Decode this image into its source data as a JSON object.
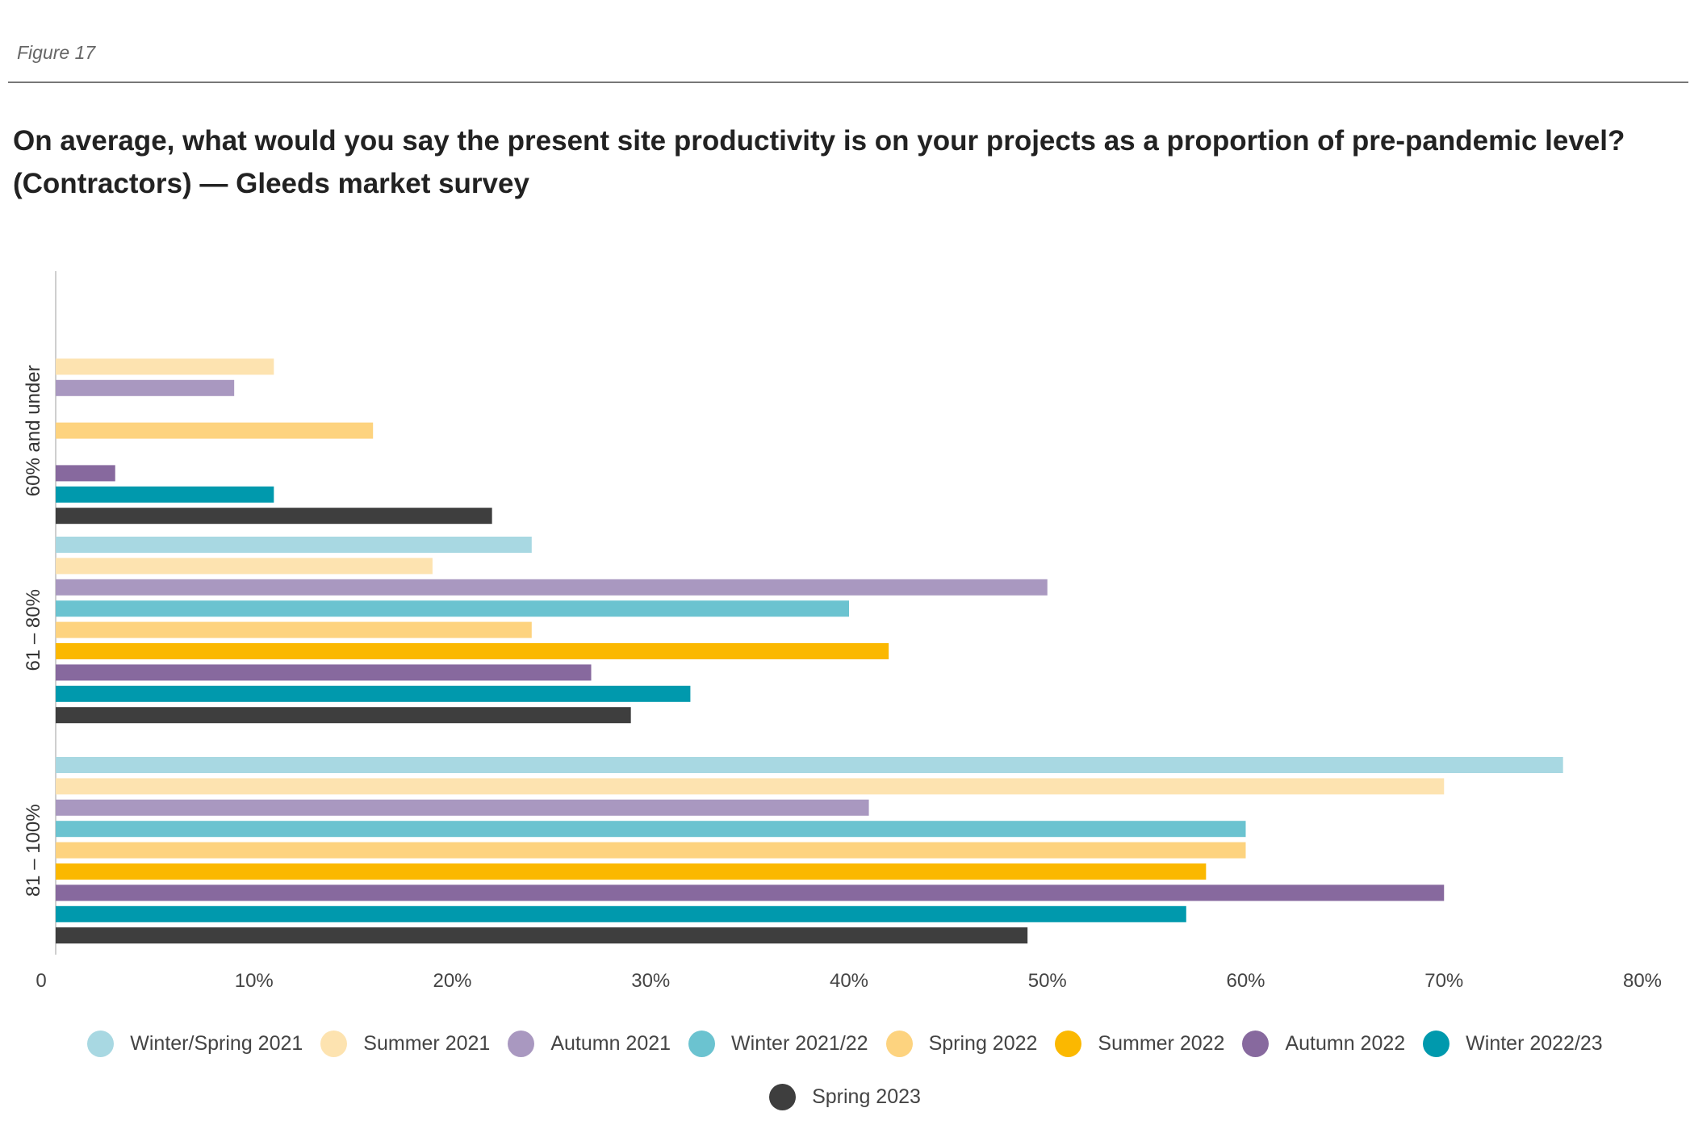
{
  "figure_label": "Figure 17",
  "title_line1": "On average, what would you say the present site productivity is on your projects as a proportion of pre-pandemic level?",
  "title_line2": "(Contractors) — Gleeds market survey",
  "chart_data": {
    "type": "bar",
    "orientation": "horizontal",
    "categories": [
      "60% and under",
      "61 – 80%",
      "81 – 100%"
    ],
    "xlim": [
      0,
      80
    ],
    "xticks": [
      0,
      10,
      20,
      30,
      40,
      50,
      60,
      70,
      80
    ],
    "xtick_labels": [
      "0",
      "10%",
      "20%",
      "30%",
      "40%",
      "50%",
      "60%",
      "70%",
      "80%"
    ],
    "legend_position": "bottom",
    "grid": false,
    "series": [
      {
        "name": "Winter/Spring 2021",
        "color": "#a8d8e2",
        "values": [
          0,
          24,
          76
        ]
      },
      {
        "name": "Summer 2021",
        "color": "#fde3b0",
        "values": [
          11,
          19,
          70
        ]
      },
      {
        "name": "Autumn 2021",
        "color": "#a998c0",
        "values": [
          9,
          50,
          41
        ]
      },
      {
        "name": "Winter 2021/22",
        "color": "#6bc3d0",
        "values": [
          0,
          40,
          60
        ]
      },
      {
        "name": "Spring 2022",
        "color": "#fdd37f",
        "values": [
          16,
          24,
          60
        ]
      },
      {
        "name": "Summer 2022",
        "color": "#fbb800",
        "values": [
          0,
          42,
          58
        ]
      },
      {
        "name": "Autumn 2022",
        "color": "#87699e",
        "values": [
          3,
          27,
          70
        ]
      },
      {
        "name": "Winter 2022/23",
        "color": "#0099ad",
        "values": [
          11,
          32,
          57
        ]
      },
      {
        "name": "Spring 2023",
        "color": "#3e3e3e",
        "values": [
          22,
          29,
          49
        ]
      }
    ]
  }
}
